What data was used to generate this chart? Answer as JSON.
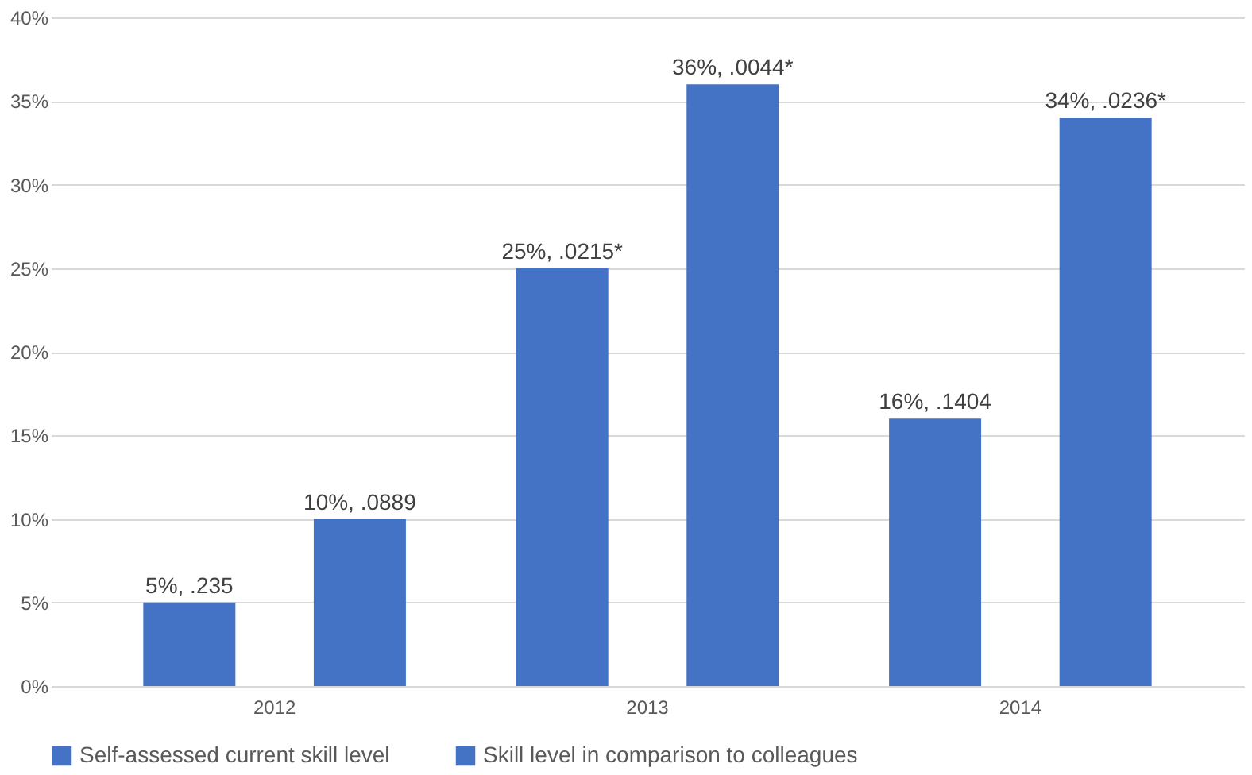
{
  "chart_data": {
    "type": "bar",
    "categories": [
      "2012",
      "2013",
      "2014"
    ],
    "series": [
      {
        "name": "Self-assessed current skill level",
        "color": "#4472c4",
        "values": [
          5,
          25,
          16
        ],
        "value_labels": [
          "5%, .235",
          "25%, .0215*",
          "16%, .1404"
        ]
      },
      {
        "name": "Skill level in comparison to colleagues",
        "color": "#4472c4",
        "values": [
          10,
          36,
          34
        ],
        "value_labels": [
          "10%, .0889",
          "36%, .0044*",
          "34%, .0236*"
        ]
      }
    ],
    "ylim": [
      0,
      40
    ],
    "yticks": [
      {
        "value": 0,
        "label": "0%"
      },
      {
        "value": 5,
        "label": "5%"
      },
      {
        "value": 10,
        "label": "10%"
      },
      {
        "value": 15,
        "label": "15%"
      },
      {
        "value": 20,
        "label": "20%"
      },
      {
        "value": 25,
        "label": "25%"
      },
      {
        "value": 30,
        "label": "30%"
      },
      {
        "value": 35,
        "label": "35%"
      },
      {
        "value": 40,
        "label": "40%"
      }
    ],
    "grid": "y",
    "legend": "bottom"
  }
}
